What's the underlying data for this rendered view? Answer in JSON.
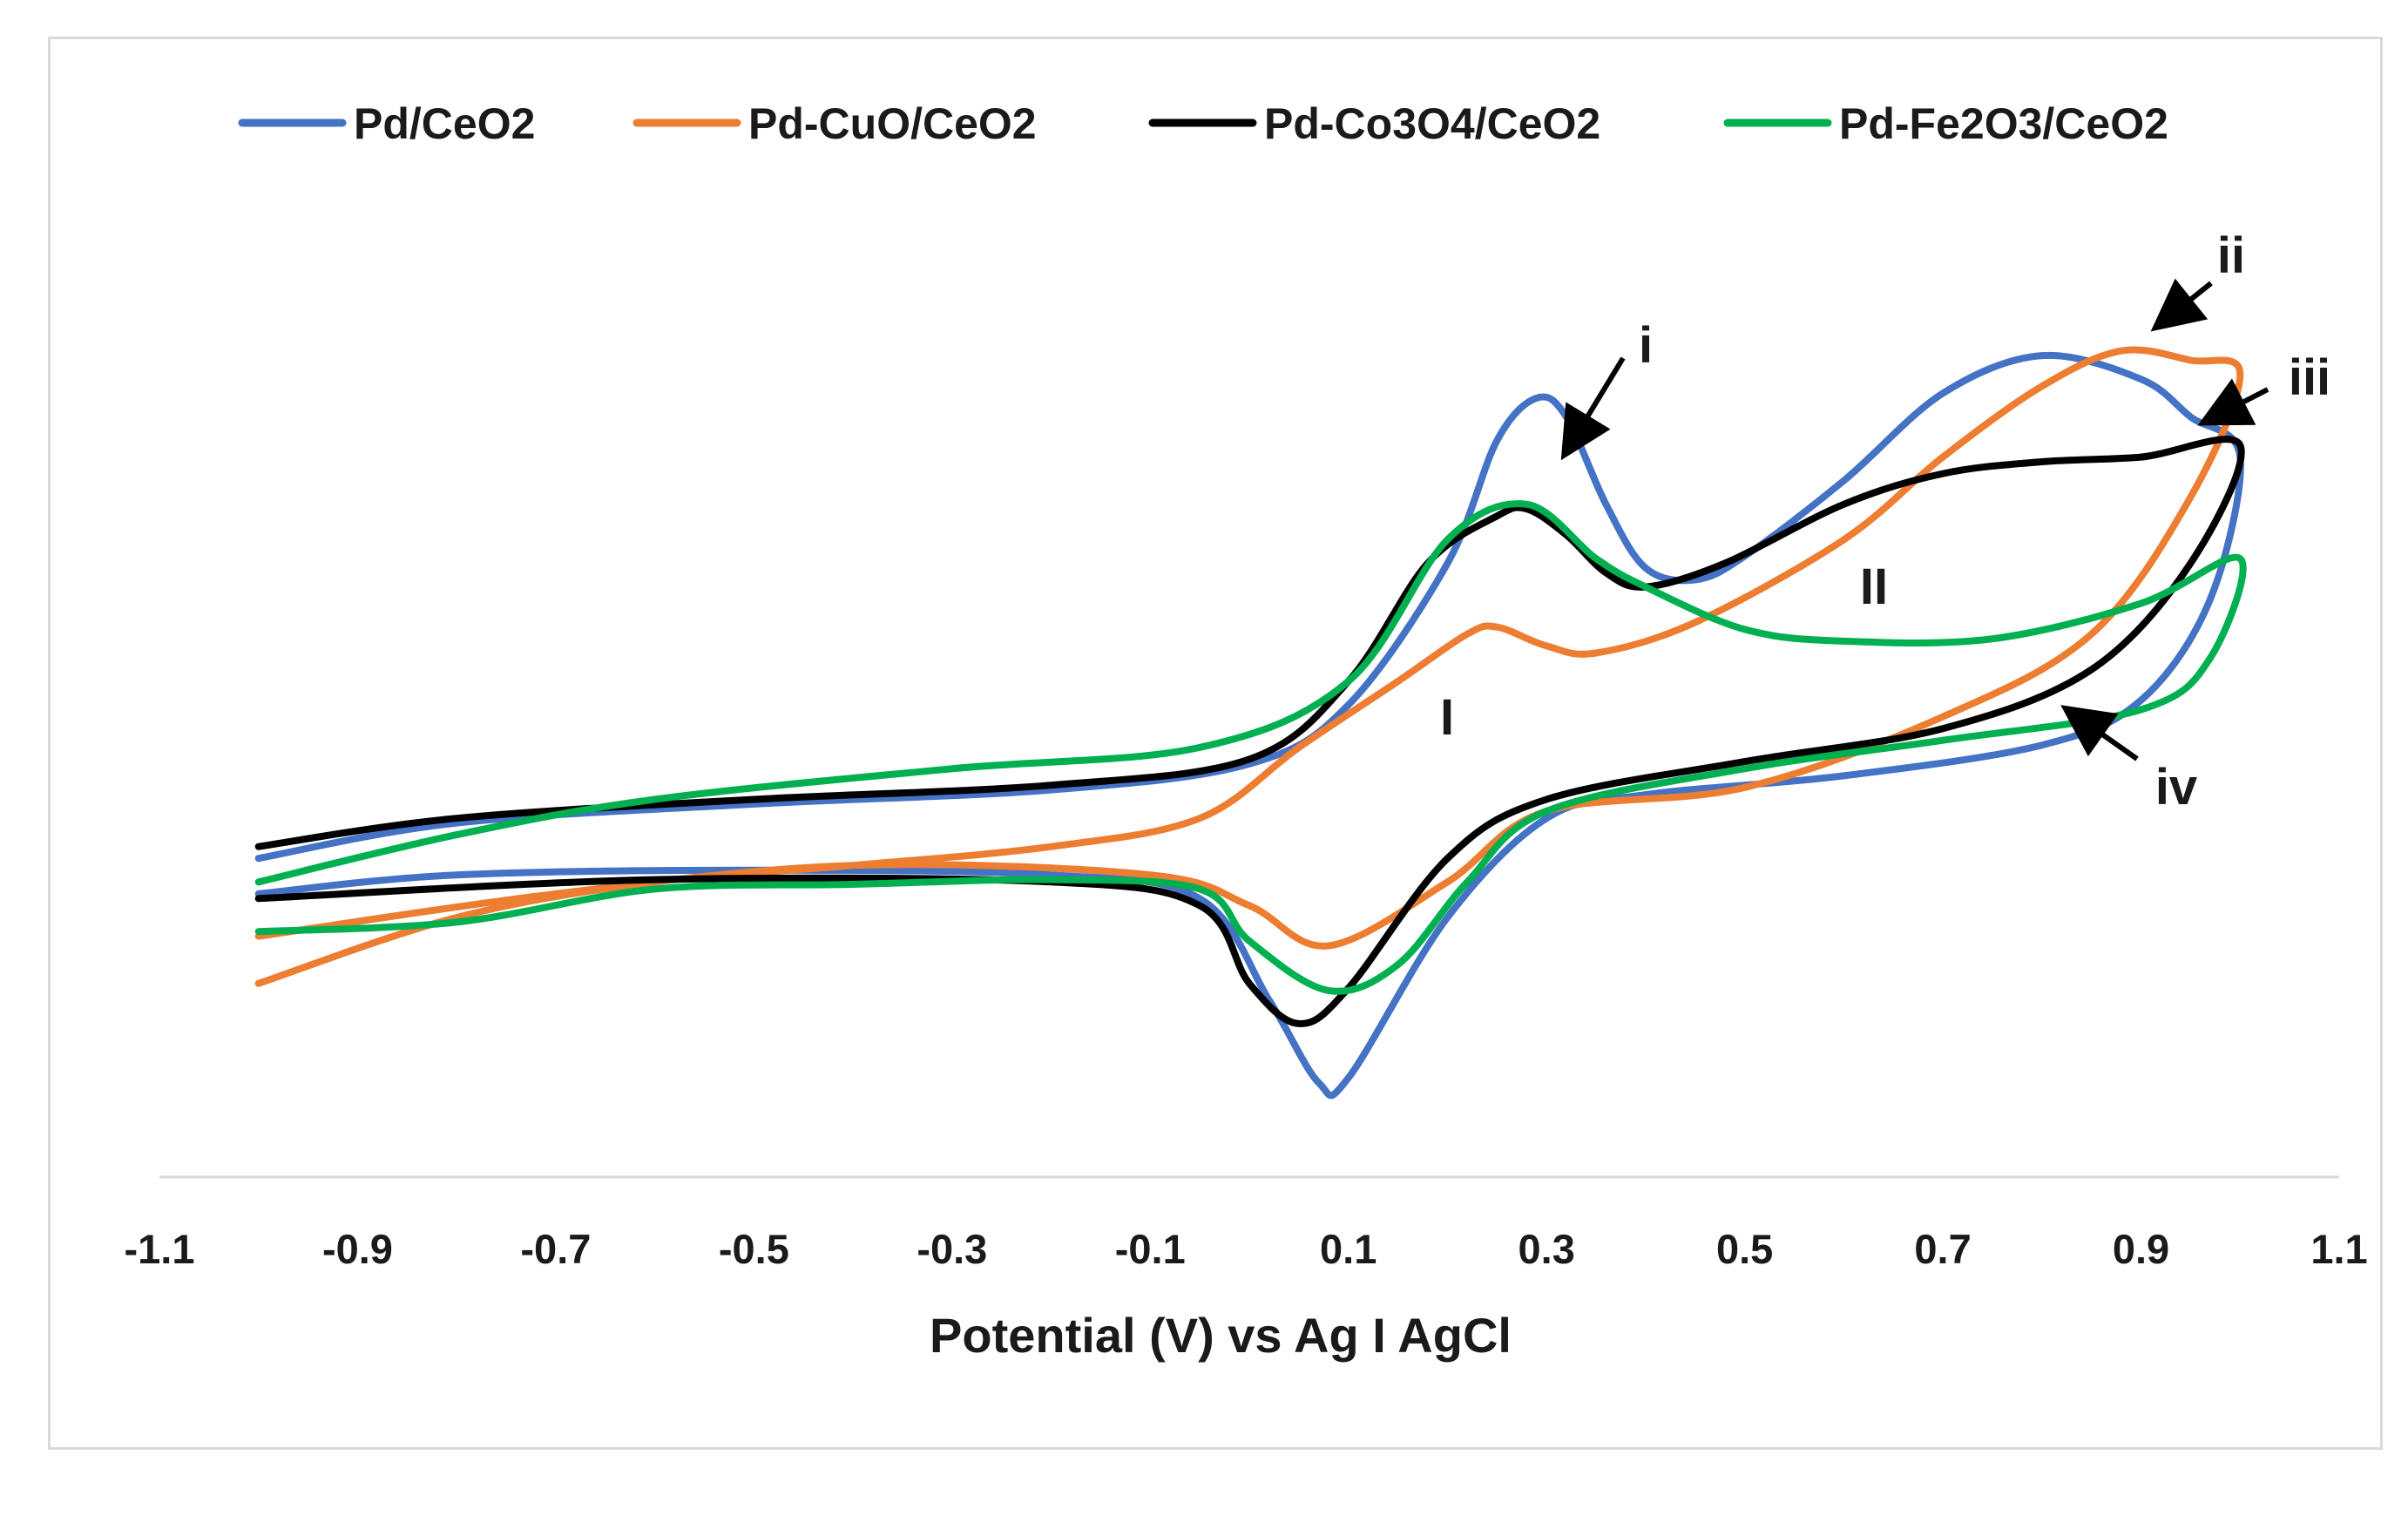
{
  "chart_data": {
    "type": "line",
    "title": "",
    "xlabel": "Potential (V) vs Ag I AgCl",
    "ylabel": "",
    "xlim": [
      -1.1,
      1.1
    ],
    "ylim": [
      -1.7,
      2.5
    ],
    "x_ticks": [
      "-1.1",
      "-0.9",
      "-0.7",
      "-0.5",
      "-0.3",
      "-0.1",
      "0.1",
      "0.3",
      "0.5",
      "0.7",
      "0.9",
      "1.1"
    ],
    "y_axis_shown": false,
    "grid": false,
    "legend_position": "top",
    "series": [
      {
        "name": "Pd/CeO2",
        "color": "#4472C4",
        "points": [
          [
            -1.0,
            -0.35
          ],
          [
            -0.8,
            -0.2
          ],
          [
            -0.5,
            -0.12
          ],
          [
            -0.2,
            -0.06
          ],
          [
            0.0,
            0.05
          ],
          [
            0.1,
            0.3
          ],
          [
            0.2,
            0.9
          ],
          [
            0.25,
            1.42
          ],
          [
            0.29,
            1.6
          ],
          [
            0.32,
            1.52
          ],
          [
            0.36,
            1.15
          ],
          [
            0.4,
            0.88
          ],
          [
            0.45,
            0.83
          ],
          [
            0.5,
            0.93
          ],
          [
            0.6,
            1.25
          ],
          [
            0.7,
            1.62
          ],
          [
            0.8,
            1.78
          ],
          [
            0.9,
            1.68
          ],
          [
            0.95,
            1.52
          ],
          [
            1.0,
            1.35
          ],
          [
            0.97,
            0.75
          ],
          [
            0.9,
            0.32
          ],
          [
            0.8,
            0.13
          ],
          [
            0.6,
            0.0
          ],
          [
            0.4,
            -0.08
          ],
          [
            0.3,
            -0.18
          ],
          [
            0.2,
            -0.6
          ],
          [
            0.1,
            -1.28
          ],
          [
            0.07,
            -1.3
          ],
          [
            0.02,
            -0.95
          ],
          [
            -0.05,
            -0.52
          ],
          [
            -0.2,
            -0.42
          ],
          [
            -0.5,
            -0.4
          ],
          [
            -0.8,
            -0.42
          ],
          [
            -1.0,
            -0.5
          ]
        ]
      },
      {
        "name": "Pd-CuO/CeO2",
        "color": "#ED7D31",
        "points": [
          [
            -1.0,
            -0.88
          ],
          [
            -0.8,
            -0.6
          ],
          [
            -0.6,
            -0.45
          ],
          [
            -0.4,
            -0.38
          ],
          [
            -0.2,
            -0.3
          ],
          [
            -0.05,
            -0.18
          ],
          [
            0.05,
            0.12
          ],
          [
            0.15,
            0.4
          ],
          [
            0.22,
            0.6
          ],
          [
            0.25,
            0.63
          ],
          [
            0.3,
            0.55
          ],
          [
            0.35,
            0.52
          ],
          [
            0.45,
            0.65
          ],
          [
            0.6,
            1.0
          ],
          [
            0.7,
            1.35
          ],
          [
            0.8,
            1.65
          ],
          [
            0.88,
            1.8
          ],
          [
            0.95,
            1.76
          ],
          [
            1.0,
            1.7
          ],
          [
            0.95,
            1.18
          ],
          [
            0.85,
            0.6
          ],
          [
            0.7,
            0.25
          ],
          [
            0.5,
            -0.05
          ],
          [
            0.3,
            -0.15
          ],
          [
            0.2,
            -0.45
          ],
          [
            0.08,
            -0.72
          ],
          [
            0.0,
            -0.55
          ],
          [
            -0.1,
            -0.42
          ],
          [
            -0.4,
            -0.38
          ],
          [
            -0.7,
            -0.5
          ],
          [
            -1.0,
            -0.68
          ]
        ]
      },
      {
        "name": "Pd-Co3O4/CeO2",
        "color": "#000000",
        "points": [
          [
            -1.0,
            -0.3
          ],
          [
            -0.8,
            -0.18
          ],
          [
            -0.5,
            -0.1
          ],
          [
            -0.2,
            -0.04
          ],
          [
            0.0,
            0.07
          ],
          [
            0.1,
            0.4
          ],
          [
            0.18,
            0.9
          ],
          [
            0.25,
            1.1
          ],
          [
            0.28,
            1.13
          ],
          [
            0.32,
            1.02
          ],
          [
            0.36,
            0.86
          ],
          [
            0.4,
            0.8
          ],
          [
            0.48,
            0.9
          ],
          [
            0.6,
            1.15
          ],
          [
            0.7,
            1.28
          ],
          [
            0.8,
            1.33
          ],
          [
            0.9,
            1.35
          ],
          [
            1.0,
            1.4
          ],
          [
            0.95,
            0.9
          ],
          [
            0.85,
            0.45
          ],
          [
            0.7,
            0.2
          ],
          [
            0.5,
            0.06
          ],
          [
            0.3,
            -0.1
          ],
          [
            0.2,
            -0.35
          ],
          [
            0.1,
            -0.9
          ],
          [
            0.05,
            -1.05
          ],
          [
            0.0,
            -0.88
          ],
          [
            -0.05,
            -0.55
          ],
          [
            -0.2,
            -0.45
          ],
          [
            -0.6,
            -0.44
          ],
          [
            -1.0,
            -0.52
          ]
        ]
      },
      {
        "name": "Pd-Fe2O3/CeO2",
        "color": "#00B050",
        "points": [
          [
            -1.0,
            -0.66
          ],
          [
            -0.8,
            -0.62
          ],
          [
            -0.6,
            -0.48
          ],
          [
            -0.4,
            -0.46
          ],
          [
            -0.2,
            -0.44
          ],
          [
            -0.05,
            -0.48
          ],
          [
            0.0,
            -0.7
          ],
          [
            0.08,
            -0.91
          ],
          [
            0.15,
            -0.8
          ],
          [
            0.22,
            -0.45
          ],
          [
            0.3,
            -0.15
          ],
          [
            0.5,
            0.03
          ],
          [
            0.7,
            0.15
          ],
          [
            0.9,
            0.28
          ],
          [
            0.97,
            0.5
          ],
          [
            1.0,
            0.92
          ],
          [
            0.9,
            0.73
          ],
          [
            0.75,
            0.58
          ],
          [
            0.6,
            0.57
          ],
          [
            0.5,
            0.62
          ],
          [
            0.4,
            0.8
          ],
          [
            0.35,
            0.92
          ],
          [
            0.28,
            1.15
          ],
          [
            0.2,
            1.0
          ],
          [
            0.1,
            0.4
          ],
          [
            -0.05,
            0.12
          ],
          [
            -0.3,
            0.03
          ],
          [
            -0.6,
            -0.1
          ],
          [
            -0.8,
            -0.25
          ],
          [
            -1.0,
            -0.45
          ]
        ]
      }
    ],
    "annotations": [
      "i",
      "ii",
      "iii",
      "iv",
      "I",
      "II"
    ]
  }
}
